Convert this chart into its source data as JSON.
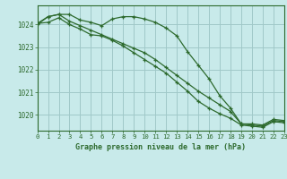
{
  "background_color": "#c8eaea",
  "grid_color": "#a0c8c8",
  "line_color": "#2d6a2d",
  "title": "Graphe pression niveau de la mer (hPa)",
  "xlim": [
    0,
    23
  ],
  "ylim": [
    1019.3,
    1024.85
  ],
  "yticks": [
    1020,
    1021,
    1022,
    1023,
    1024
  ],
  "xticks": [
    0,
    1,
    2,
    3,
    4,
    5,
    6,
    7,
    8,
    9,
    10,
    11,
    12,
    13,
    14,
    15,
    16,
    17,
    18,
    19,
    20,
    21,
    22,
    23
  ],
  "series1": [
    1024.0,
    1024.35,
    1024.45,
    1024.45,
    1024.2,
    1024.1,
    1023.95,
    1024.25,
    1024.35,
    1024.35,
    1024.25,
    1024.1,
    1023.85,
    1023.5,
    1022.8,
    1022.2,
    1021.6,
    1020.85,
    1020.3,
    1019.6,
    1019.6,
    1019.55,
    1019.8,
    1019.75
  ],
  "series2": [
    1024.05,
    1024.35,
    1024.45,
    1024.15,
    1023.95,
    1023.75,
    1023.55,
    1023.35,
    1023.15,
    1022.95,
    1022.75,
    1022.45,
    1022.1,
    1021.75,
    1021.4,
    1021.05,
    1020.75,
    1020.45,
    1020.15,
    1019.6,
    1019.55,
    1019.5,
    1019.75,
    1019.7
  ],
  "series3": [
    1024.05,
    1024.1,
    1024.3,
    1024.0,
    1023.8,
    1023.55,
    1023.5,
    1023.3,
    1023.05,
    1022.75,
    1022.45,
    1022.15,
    1021.85,
    1021.45,
    1021.05,
    1020.6,
    1020.3,
    1020.05,
    1019.85,
    1019.55,
    1019.5,
    1019.45,
    1019.7,
    1019.65
  ]
}
